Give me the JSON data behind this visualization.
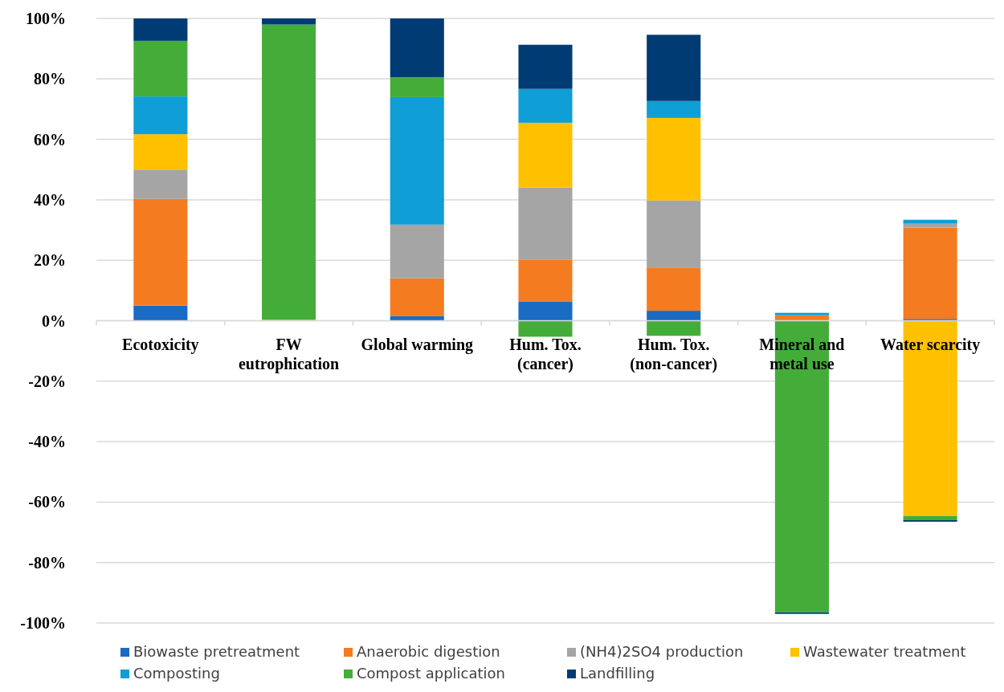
{
  "chart_data": {
    "type": "bar",
    "stacked": true,
    "categories": [
      "Ecotoxicity",
      "FW eutrophication",
      "Global warming",
      "Hum. Tox. (cancer)",
      "Hum. Tox. (non-cancer)",
      "Mineral and metal use",
      "Water scarcity"
    ],
    "series": [
      {
        "name": "Biowaste pretreatment",
        "color": "#1a6bc4",
        "values": [
          5,
          0,
          1.5,
          6.4,
          3.3,
          0,
          0.6
        ]
      },
      {
        "name": "Anaerobic digestion",
        "color": "#f47b20",
        "values": [
          35.3,
          0,
          12.5,
          13.7,
          14.3,
          1.8,
          30.2
        ]
      },
      {
        "name": "(NH4)2SO4  production",
        "color": "#a5a5a5",
        "values": [
          9.7,
          0,
          17.8,
          23.9,
          22.2,
          null,
          1.3
        ]
      },
      {
        "name": "Wastewater treatment",
        "color": "#ffc000",
        "values": [
          11.7,
          0.3,
          0,
          21.5,
          27.3,
          0,
          -64.6
        ]
      },
      {
        "name": "Composting",
        "color": "#0f9ed5",
        "values": [
          12.5,
          0,
          42.2,
          11.2,
          5.6,
          0.8,
          1.3
        ]
      },
      {
        "name": "Compost application",
        "color": "#44ad3a",
        "values": [
          18.4,
          97.7,
          6.6,
          -5.3,
          -5,
          -96.5,
          -1.4
        ]
      },
      {
        "name": "Landfilling",
        "color": "#003b73",
        "values": [
          7.4,
          2,
          19.4,
          14.6,
          21.9,
          -0.5,
          -0.5
        ]
      }
    ],
    "ylim": [
      -100,
      100
    ],
    "yticks": [
      {
        "value": -100,
        "label": "-100%"
      },
      {
        "value": -80,
        "label": "-80%"
      },
      {
        "value": -60,
        "label": "-60%"
      },
      {
        "value": -40,
        "label": "-40%"
      },
      {
        "value": -20,
        "label": "-20%"
      },
      {
        "value": 0,
        "label": "0%"
      },
      {
        "value": 20,
        "label": "20%"
      },
      {
        "value": 40,
        "label": "40%"
      },
      {
        "value": 60,
        "label": "60%"
      },
      {
        "value": 80,
        "label": "80%"
      },
      {
        "value": 100,
        "label": "100%"
      }
    ],
    "grid": "y",
    "legend": "bottom"
  }
}
